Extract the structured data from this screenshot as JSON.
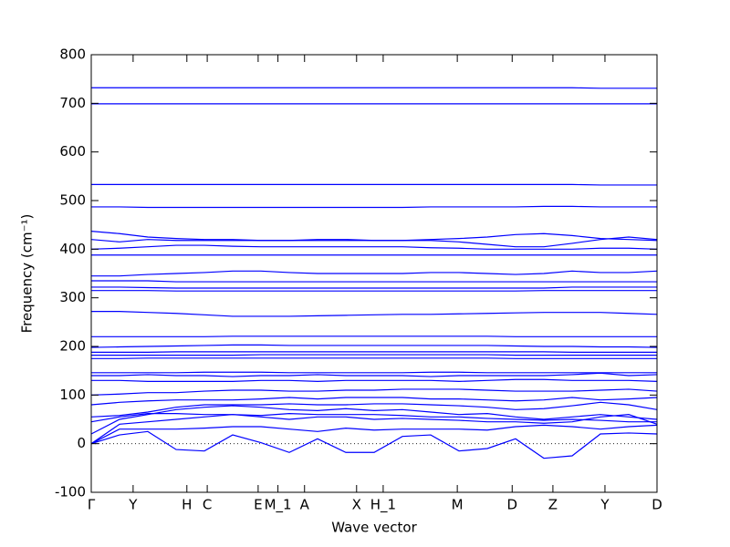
{
  "chart_data": {
    "type": "line",
    "xlabel": "Wave vector",
    "ylabel": "Frequency (cm⁻¹)",
    "xlim": [
      0,
      1
    ],
    "ylim": [
      -100,
      800
    ],
    "yticks": [
      -100,
      0,
      100,
      200,
      300,
      400,
      500,
      600,
      700,
      800
    ],
    "xticks": [
      {
        "value": 0,
        "label": "Γ"
      },
      {
        "value": 0.074,
        "label": "Y"
      },
      {
        "value": 0.169,
        "label": "H"
      },
      {
        "value": 0.205,
        "label": "C"
      },
      {
        "value": 0.295,
        "label": "E"
      },
      {
        "value": 0.33,
        "label": "M_1"
      },
      {
        "value": 0.377,
        "label": "A"
      },
      {
        "value": 0.469,
        "label": "X"
      },
      {
        "value": 0.516,
        "label": "H_1"
      },
      {
        "value": 0.647,
        "label": "M"
      },
      {
        "value": 0.744,
        "label": "D"
      },
      {
        "value": 0.816,
        "label": "Z"
      },
      {
        "value": 0.908,
        "label": "Y"
      },
      {
        "value": 1,
        "label": "D"
      }
    ],
    "zero_line": true,
    "color": "#0000ff",
    "x": [
      0,
      0.05,
      0.1,
      0.15,
      0.2,
      0.25,
      0.3,
      0.35,
      0.4,
      0.45,
      0.5,
      0.55,
      0.6,
      0.65,
      0.7,
      0.75,
      0.8,
      0.85,
      0.9,
      0.95,
      1
    ],
    "series": [
      {
        "values": [
          0,
          18,
          25,
          -12,
          -15,
          18,
          2,
          -18,
          10,
          -18,
          -18,
          15,
          18,
          -15,
          -10,
          10,
          -30,
          -25,
          20,
          22,
          20
        ]
      },
      {
        "values": [
          0,
          30,
          30,
          30,
          32,
          35,
          35,
          30,
          25,
          32,
          28,
          30,
          30,
          30,
          28,
          35,
          38,
          35,
          30,
          35,
          38
        ]
      },
      {
        "values": [
          0,
          40,
          45,
          50,
          55,
          60,
          55,
          50,
          55,
          55,
          50,
          52,
          50,
          48,
          45,
          45,
          42,
          45,
          55,
          60,
          40
        ]
      },
      {
        "values": [
          20,
          50,
          60,
          70,
          75,
          78,
          75,
          70,
          68,
          72,
          68,
          70,
          65,
          60,
          62,
          55,
          50,
          55,
          60,
          55,
          50
        ]
      },
      {
        "values": [
          45,
          55,
          62,
          62,
          60,
          60,
          58,
          62,
          60,
          60,
          60,
          58,
          55,
          55,
          52,
          50,
          48,
          50,
          48,
          45,
          45
        ]
      },
      {
        "values": [
          55,
          58,
          65,
          75,
          80,
          80,
          80,
          82,
          80,
          80,
          82,
          82,
          80,
          78,
          75,
          70,
          72,
          78,
          85,
          80,
          70
        ]
      },
      {
        "values": [
          80,
          85,
          88,
          90,
          90,
          90,
          92,
          95,
          92,
          95,
          95,
          95,
          92,
          92,
          90,
          88,
          90,
          95,
          90,
          92,
          95
        ]
      },
      {
        "values": [
          100,
          102,
          105,
          105,
          108,
          110,
          110,
          108,
          108,
          110,
          110,
          112,
          112,
          112,
          110,
          108,
          108,
          108,
          110,
          112,
          108
        ]
      },
      {
        "values": [
          130,
          130,
          128,
          128,
          128,
          128,
          130,
          130,
          128,
          130,
          130,
          130,
          130,
          128,
          130,
          132,
          132,
          130,
          130,
          130,
          128
        ]
      },
      {
        "values": [
          140,
          140,
          142,
          140,
          140,
          138,
          140,
          140,
          142,
          140,
          140,
          140,
          138,
          140,
          140,
          140,
          140,
          142,
          145,
          140,
          142
        ]
      },
      {
        "values": [
          146,
          146,
          146,
          146,
          147,
          147,
          147,
          146,
          146,
          146,
          146,
          146,
          147,
          147,
          146,
          146,
          146,
          146,
          146,
          146,
          146
        ]
      },
      {
        "values": [
          175,
          175,
          176,
          176,
          176,
          176,
          176,
          176,
          176,
          176,
          176,
          176,
          176,
          176,
          176,
          175,
          175,
          175,
          175,
          175,
          175
        ]
      },
      {
        "values": [
          182,
          182,
          182,
          182,
          182,
          182,
          183,
          183,
          183,
          183,
          183,
          183,
          183,
          183,
          183,
          182,
          182,
          182,
          182,
          182,
          182
        ]
      },
      {
        "values": [
          188,
          188,
          188,
          189,
          189,
          189,
          189,
          189,
          189,
          189,
          189,
          189,
          189,
          189,
          189,
          189,
          189,
          188,
          188,
          188,
          188
        ]
      },
      {
        "values": [
          198,
          199,
          200,
          201,
          202,
          203,
          203,
          202,
          202,
          202,
          202,
          202,
          202,
          202,
          202,
          201,
          200,
          200,
          199,
          199,
          198
        ]
      },
      {
        "values": [
          220,
          220,
          220,
          220,
          220,
          221,
          221,
          221,
          221,
          221,
          221,
          221,
          221,
          221,
          221,
          220,
          220,
          220,
          220,
          220,
          220
        ]
      },
      {
        "values": [
          272,
          272,
          270,
          268,
          265,
          262,
          262,
          262,
          263,
          264,
          265,
          266,
          266,
          267,
          268,
          269,
          270,
          270,
          270,
          268,
          266
        ]
      },
      {
        "values": [
          315,
          315,
          315,
          314,
          314,
          314,
          314,
          314,
          314,
          314,
          314,
          314,
          314,
          314,
          314,
          314,
          315,
          315,
          315,
          315,
          315
        ]
      },
      {
        "values": [
          322,
          322,
          321,
          320,
          320,
          320,
          320,
          320,
          320,
          320,
          320,
          320,
          320,
          320,
          320,
          320,
          320,
          322,
          322,
          322,
          322
        ]
      },
      {
        "values": [
          335,
          335,
          335,
          333,
          333,
          333,
          333,
          333,
          333,
          333,
          333,
          333,
          333,
          333,
          333,
          333,
          333,
          333,
          333,
          333,
          333
        ]
      },
      {
        "values": [
          345,
          345,
          348,
          350,
          352,
          355,
          355,
          352,
          350,
          350,
          350,
          350,
          352,
          352,
          350,
          348,
          350,
          355,
          352,
          352,
          355
        ]
      },
      {
        "values": [
          388,
          388,
          388,
          388,
          388,
          388,
          388,
          388,
          388,
          388,
          388,
          388,
          388,
          388,
          388,
          388,
          388,
          388,
          388,
          388,
          388
        ]
      },
      {
        "values": [
          400,
          402,
          405,
          408,
          408,
          406,
          405,
          405,
          405,
          405,
          405,
          405,
          403,
          402,
          400,
          400,
          400,
          400,
          402,
          402,
          400
        ]
      },
      {
        "values": [
          420,
          415,
          420,
          418,
          418,
          418,
          418,
          418,
          418,
          418,
          418,
          418,
          418,
          415,
          410,
          405,
          405,
          412,
          420,
          425,
          420
        ]
      },
      {
        "values": [
          437,
          432,
          425,
          422,
          420,
          420,
          418,
          418,
          420,
          420,
          418,
          418,
          420,
          422,
          425,
          430,
          432,
          428,
          422,
          420,
          418
        ]
      },
      {
        "values": [
          487,
          487,
          486,
          486,
          486,
          486,
          486,
          486,
          486,
          486,
          486,
          486,
          487,
          487,
          487,
          487,
          488,
          488,
          487,
          487,
          487
        ]
      },
      {
        "values": [
          533,
          533,
          533,
          533,
          533,
          533,
          533,
          533,
          533,
          533,
          533,
          533,
          533,
          533,
          533,
          533,
          533,
          533,
          532,
          532,
          532
        ]
      },
      {
        "values": [
          699,
          699,
          699,
          699,
          699,
          699,
          699,
          699,
          699,
          699,
          699,
          699,
          699,
          699,
          699,
          699,
          699,
          699,
          699,
          699,
          699
        ]
      },
      {
        "values": [
          732,
          732,
          732,
          732,
          732,
          732,
          732,
          732,
          732,
          732,
          732,
          732,
          732,
          732,
          732,
          732,
          732,
          732,
          731,
          731,
          731
        ]
      }
    ]
  }
}
